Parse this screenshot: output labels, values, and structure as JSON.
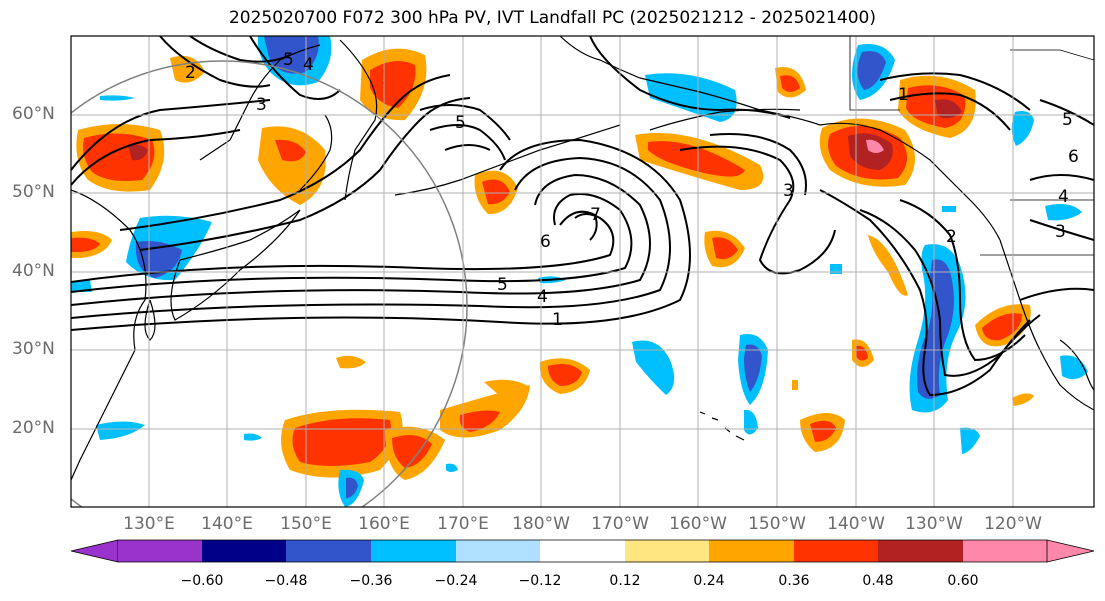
{
  "title": "2025020700 F072 300 hPa PV, IVT Landfall PC (2025021212 - 2025021400)",
  "lat_labels": [
    "60°N",
    "50°N",
    "40°N",
    "30°N",
    "20°N"
  ],
  "lon_labels": [
    "130°E",
    "140°E",
    "150°E",
    "160°E",
    "170°E",
    "180°W",
    "170°W",
    "160°W",
    "150°W",
    "140°W",
    "130°W",
    "120°W"
  ],
  "colorbar": {
    "labels": [
      "−0.60",
      "−0.48",
      "−0.36",
      "−0.24",
      "−0.12",
      "0.12",
      "0.24",
      "0.36",
      "0.48",
      "0.60"
    ],
    "colors": [
      "#9933cc",
      "#000088",
      "#3355cc",
      "#00bfff",
      "#b0e0ff",
      "#ffffff",
      "#ffe680",
      "#ffa500",
      "#ff3300",
      "#b22222",
      "#ff88aa"
    ]
  },
  "contour_labels": [
    "1",
    "2",
    "3",
    "4",
    "5",
    "6",
    "7"
  ],
  "colors": {
    "positive": [
      "#ffe680",
      "#ffa500",
      "#ff3300",
      "#b22222",
      "#ff88aa"
    ],
    "negative": [
      "#b0e0ff",
      "#00bfff",
      "#3355cc",
      "#000088"
    ]
  }
}
